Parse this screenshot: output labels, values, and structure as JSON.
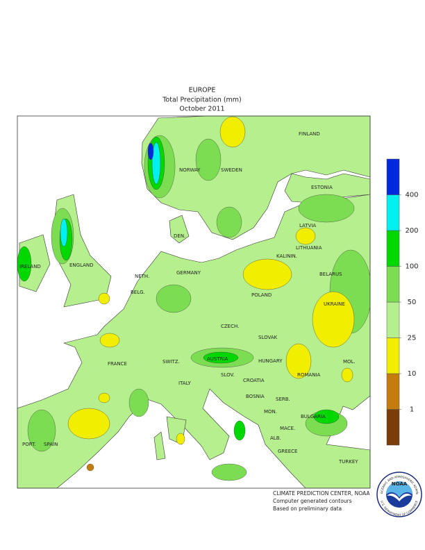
{
  "header": {
    "region": "EUROPE",
    "title": "Total Precipitation (mm)",
    "period": "October 2011"
  },
  "legend": {
    "levels": [
      1,
      10,
      25,
      50,
      100,
      200,
      400
    ],
    "colors": [
      "#7a3c08",
      "#c47c0c",
      "#f2ee00",
      "#b6f08e",
      "#7cdc52",
      "#00d800",
      "#00f0f0",
      "#0028dc"
    ]
  },
  "map": {
    "labels": [
      "NORWAY",
      "SWEDEN",
      "FINLAND",
      "ESTONIA",
      "LATVIA",
      "LITHUANIA",
      "KALININ.",
      "DEN.",
      "IRELAND",
      "ENGLAND",
      "NETH.",
      "BELG.",
      "GERMANY",
      "POLAND",
      "BELARUS",
      "UKRAINE",
      "CZECH.",
      "SLOVAK",
      "FRANCE",
      "SWITZ.",
      "AUSTRIA",
      "HUNGARY",
      "ROMANIA",
      "MOL.",
      "ITALY",
      "SLOV.",
      "CROATIA",
      "BOSNIA",
      "SERB.",
      "BULGARIA",
      "MON.",
      "MACE.",
      "ALB.",
      "GREECE",
      "TURKEY",
      "PORT.",
      "SPAIN"
    ]
  },
  "credits": [
    "CLIMATE PREDICTION CENTER, NOAA",
    "Computer generated contours",
    "Based on preliminary data"
  ],
  "logo": {
    "name": "NOAA",
    "top": "NATIONAL OCEANIC AND ATMOSPHERIC ADMINISTRATION",
    "bottom": "U.S. DEPARTMENT OF COMMERCE"
  }
}
